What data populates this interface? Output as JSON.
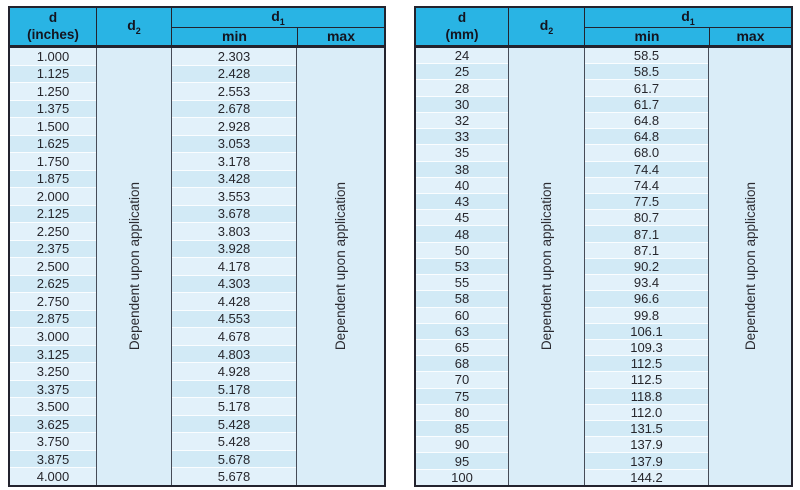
{
  "colors": {
    "header_bg": "#29b4e4",
    "row_light": "#e2f1fa",
    "row_dark": "#d2eaf6",
    "merged_bg": "#daedf8",
    "border_dark": "#23232e",
    "text": "#26262c"
  },
  "tables": [
    {
      "id": "inches",
      "header": {
        "d_line1": "d",
        "d_line2": "(inches)",
        "d2": {
          "base": "d",
          "sub": "2"
        },
        "d1": {
          "base": "d",
          "sub": "1"
        },
        "min": "min",
        "max": "max"
      },
      "d2_note": "Dependent upon application",
      "max_note": "Dependent upon application",
      "d_values": [
        "1.000",
        "1.125",
        "1.250",
        "1.375",
        "1.500",
        "1.625",
        "1.750",
        "1.875",
        "2.000",
        "2.125",
        "2.250",
        "2.375",
        "2.500",
        "2.625",
        "2.750",
        "2.875",
        "3.000",
        "3.125",
        "3.250",
        "3.375",
        "3.500",
        "3.625",
        "3.750",
        "3.875",
        "4.000"
      ],
      "min_values": [
        "2.303",
        "2.428",
        "2.553",
        "2.678",
        "2.928",
        "3.053",
        "3.178",
        "3.428",
        "3.553",
        "3.678",
        "3.803",
        "3.928",
        "4.178",
        "4.303",
        "4.428",
        "4.553",
        "4.678",
        "4.803",
        "4.928",
        "5.178",
        "5.178",
        "5.428",
        "5.428",
        "5.678",
        "5.678"
      ]
    },
    {
      "id": "mm",
      "header": {
        "d_line1": "d",
        "d_line2": "(mm)",
        "d2": {
          "base": "d",
          "sub": "2"
        },
        "d1": {
          "base": "d",
          "sub": "1"
        },
        "min": "min",
        "max": "max"
      },
      "d2_note": "Dependent upon application",
      "max_note": "Dependent upon application",
      "d_values": [
        "24",
        "25",
        "28",
        "30",
        "32",
        "33",
        "35",
        "38",
        "40",
        "43",
        "45",
        "48",
        "50",
        "53",
        "55",
        "58",
        "60",
        "63",
        "65",
        "68",
        "70",
        "75",
        "80",
        "85",
        "90",
        "95",
        "100"
      ],
      "min_values": [
        "58.5",
        "58.5",
        "61.7",
        "61.7",
        "64.8",
        "64.8",
        "68.0",
        "74.4",
        "74.4",
        "77.5",
        "80.7",
        "87.1",
        "87.1",
        "90.2",
        "93.4",
        "96.6",
        "99.8",
        "106.1",
        "109.3",
        "112.5",
        "112.5",
        "118.8",
        "112.0",
        "131.5",
        "137.9",
        "137.9",
        "144.2"
      ]
    }
  ]
}
